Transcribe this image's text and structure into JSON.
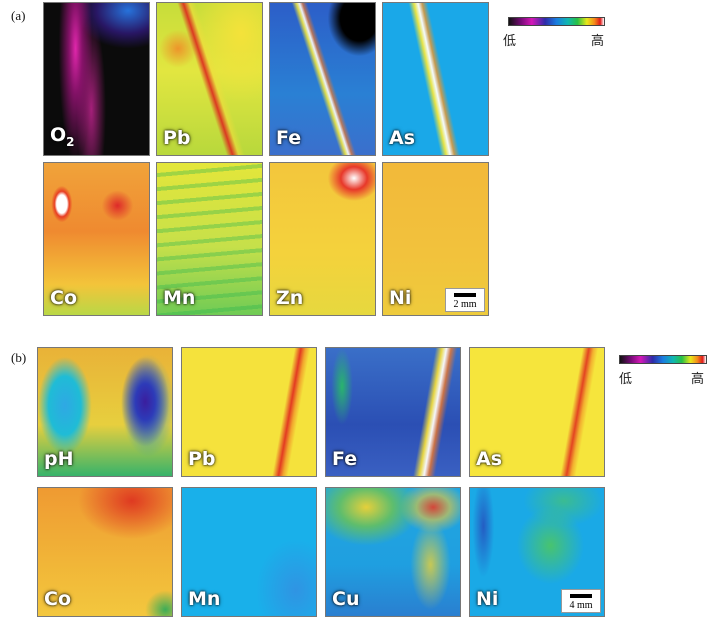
{
  "panel_a": {
    "label": "(a)",
    "colorbar": {
      "low": "低",
      "high": "高"
    },
    "tiles": [
      "O",
      "Pb",
      "Fe",
      "As",
      "Co",
      "Mn",
      "Zn",
      "Ni"
    ],
    "o2_subscript": "2",
    "scale": "2 mm"
  },
  "panel_b": {
    "label": "(b)",
    "colorbar": {
      "low": "低",
      "high": "高"
    },
    "tiles": [
      "pH",
      "Pb",
      "Fe",
      "As",
      "Co",
      "Mn",
      "Cu",
      "Ni"
    ],
    "scale": "4 mm"
  }
}
